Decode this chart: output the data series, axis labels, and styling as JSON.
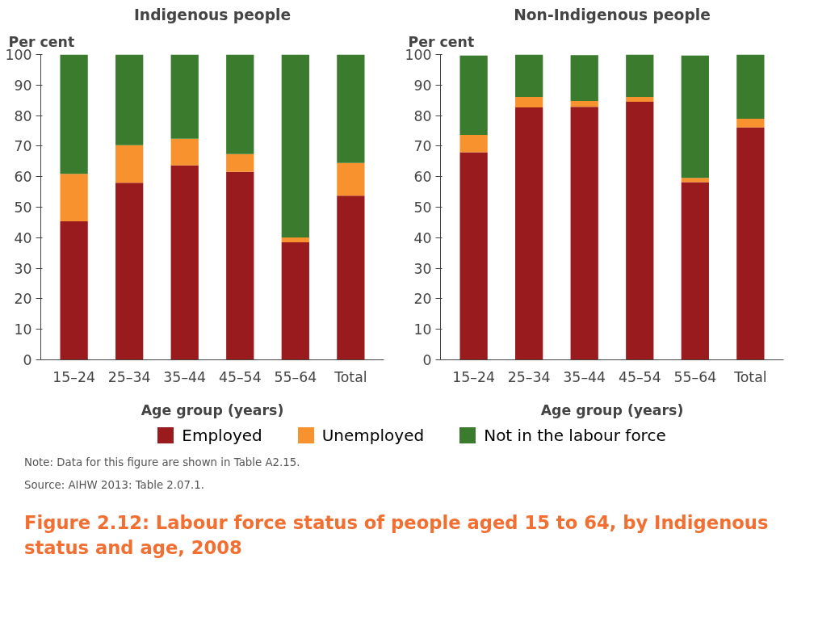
{
  "chart_data": [
    {
      "type": "bar",
      "stacked": true,
      "title": "Indigenous people",
      "ylabel": "Per cent",
      "xlabel": "Age group (years)",
      "categories": [
        "15–24",
        "25–34",
        "35–44",
        "45–54",
        "55–64",
        "Total"
      ],
      "series": [
        {
          "name": "Employed",
          "color": "#991b1e",
          "values": [
            45.4,
            58.0,
            63.7,
            61.6,
            38.5,
            53.8
          ]
        },
        {
          "name": "Unemployed",
          "color": "#f7922e",
          "values": [
            15.5,
            12.3,
            8.7,
            5.8,
            1.6,
            10.7
          ]
        },
        {
          "name": "Not in the labour force",
          "color": "#3a7b2d",
          "values": [
            39.1,
            29.7,
            27.6,
            32.6,
            59.9,
            35.5
          ]
        }
      ],
      "ylim": [
        0,
        100
      ],
      "yticks": [
        0,
        10,
        20,
        30,
        40,
        50,
        60,
        70,
        80,
        90,
        100
      ],
      "grid": false,
      "legend": "bottom"
    },
    {
      "type": "bar",
      "stacked": true,
      "title": "Non-Indigenous people",
      "ylabel": "Per cent",
      "xlabel": "Age group (years)",
      "categories": [
        "15–24",
        "25–34",
        "35–44",
        "45–54",
        "55–64",
        "Total"
      ],
      "series": [
        {
          "name": "Employed",
          "color": "#991b1e",
          "values": [
            68.0,
            82.7,
            82.9,
            84.5,
            58.2,
            76.1
          ]
        },
        {
          "name": "Unemployed",
          "color": "#f7922e",
          "values": [
            5.7,
            3.4,
            1.9,
            1.6,
            1.4,
            2.9
          ]
        },
        {
          "name": "Not in the labour force",
          "color": "#3a7b2d",
          "values": [
            26.0,
            13.9,
            15.0,
            13.9,
            40.1,
            21.0
          ]
        }
      ],
      "ylim": [
        0,
        100
      ],
      "yticks": [
        0,
        10,
        20,
        30,
        40,
        50,
        60,
        70,
        80,
        90,
        100
      ],
      "grid": false,
      "legend": "bottom",
      "annotations": [
        "Note: Data for this figure are shown in Table A2.15.",
        "Source: AIHW 2013: Table 2.07.1.",
        "Figure 2.12: Labour force status of people aged 15 to 64, by Indigenous status and age, 2008"
      ]
    }
  ]
}
